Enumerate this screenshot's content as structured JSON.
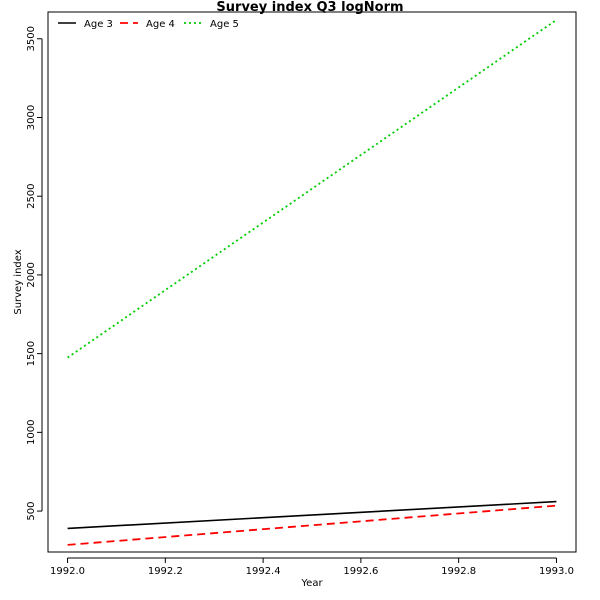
{
  "chart_data": {
    "type": "line",
    "title": "Survey index Q3 logNorm",
    "xlabel": "Year",
    "ylabel": "Survey index",
    "x": [
      1992.0,
      1993.0
    ],
    "xlim": [
      1991.96,
      1993.04
    ],
    "ylim": [
      240,
      3670
    ],
    "xticks": [
      "1992.0",
      "1992.2",
      "1992.4",
      "1992.6",
      "1992.8",
      "1993.0"
    ],
    "yticks": [
      "500",
      "1000",
      "1500",
      "2000",
      "2500",
      "3000",
      "3500"
    ],
    "legend_position": "top-left",
    "grid": false,
    "series": [
      {
        "name": "Age 3",
        "values": [
          390,
          560
        ],
        "color": "#000000",
        "dash": "solid"
      },
      {
        "name": "Age 4",
        "values": [
          285,
          535
        ],
        "color": "#ff0000",
        "dash": "dashed"
      },
      {
        "name": "Age 5",
        "values": [
          1475,
          3620
        ],
        "color": "#00cd00",
        "dash": "dotted"
      }
    ]
  }
}
